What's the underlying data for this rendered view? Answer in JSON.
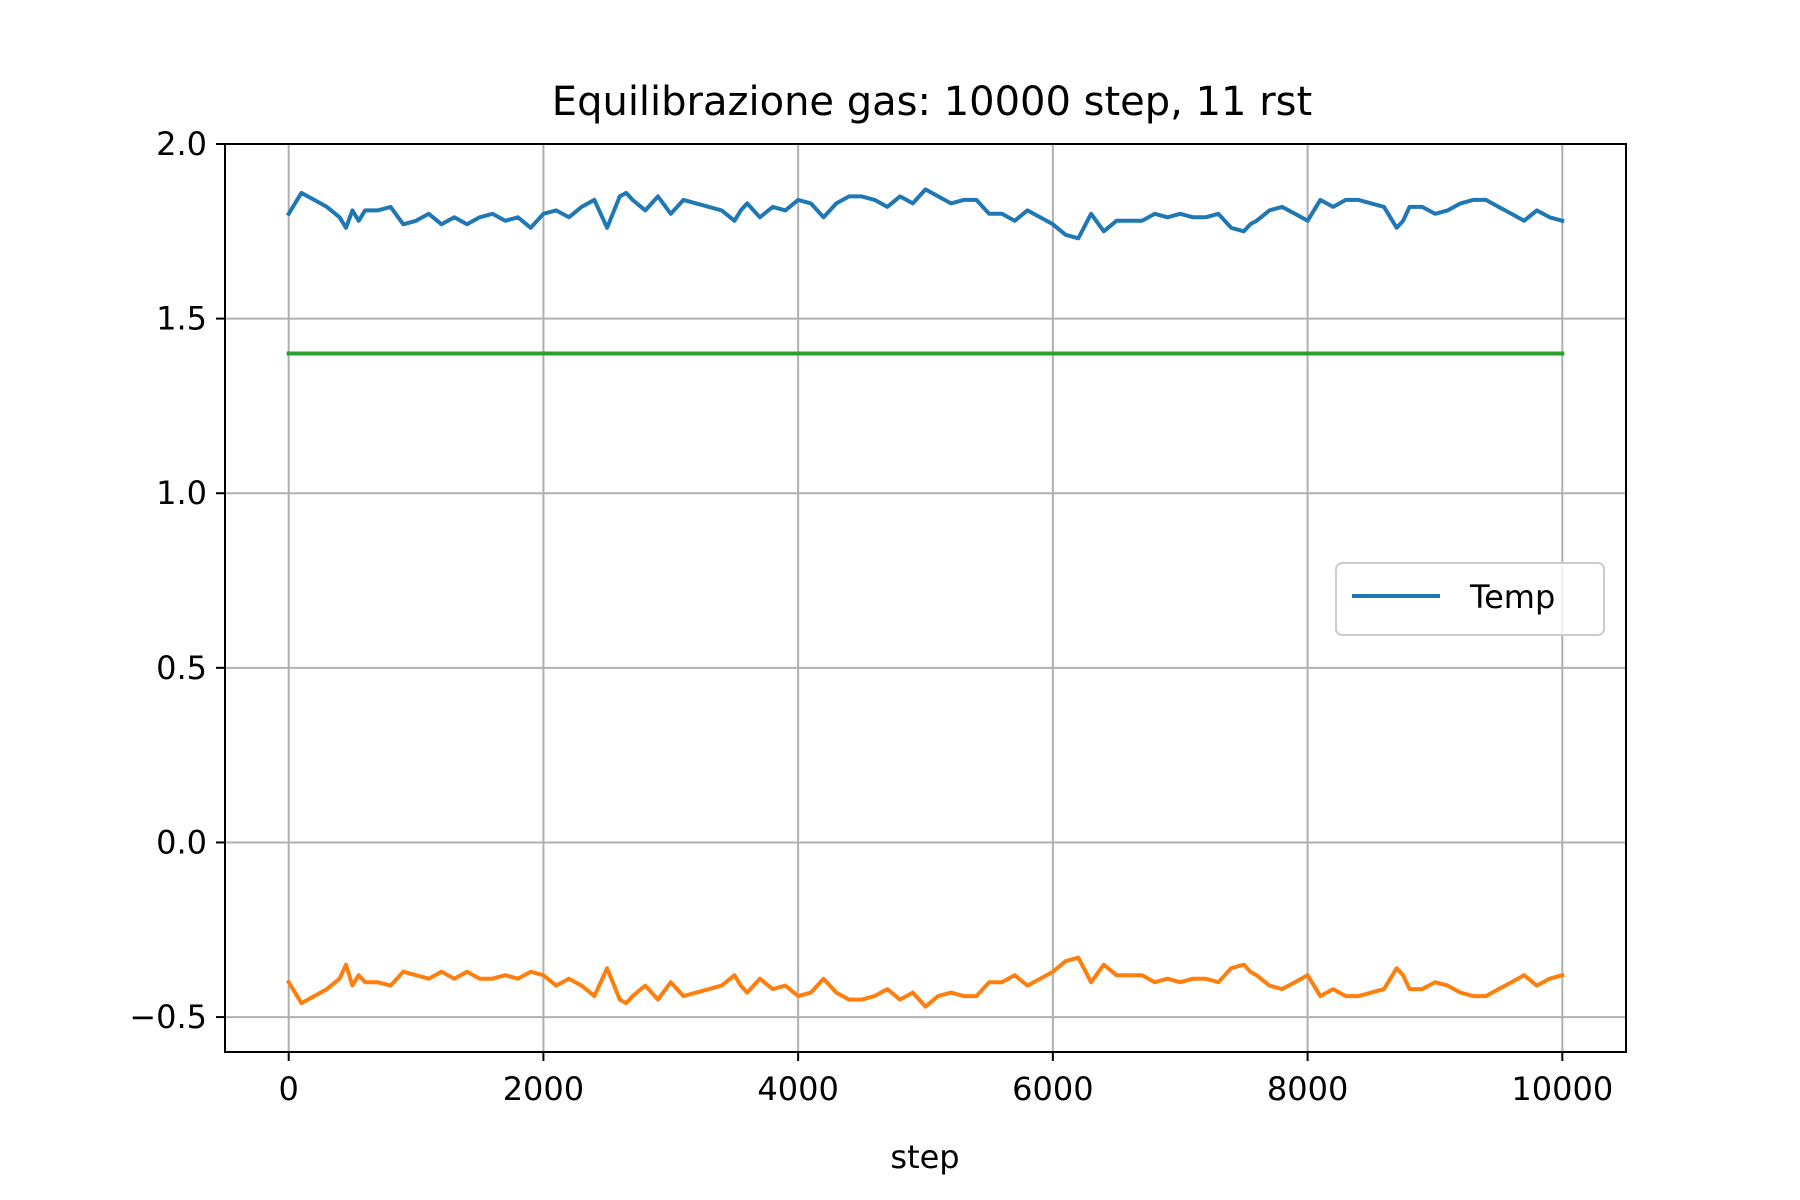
{
  "chart_data": {
    "type": "line",
    "title": "Equilibrazione gas: 10000 step, 11 rst",
    "xlabel": "step",
    "ylabel": "",
    "xlim": [
      -500,
      10500
    ],
    "ylim": [
      -0.6,
      2.0
    ],
    "xticks": [
      0,
      2000,
      4000,
      6000,
      8000,
      10000
    ],
    "xtick_labels": [
      "0",
      "2000",
      "4000",
      "6000",
      "8000",
      "10000"
    ],
    "yticks": [
      -0.5,
      0.0,
      0.5,
      1.0,
      1.5,
      2.0
    ],
    "ytick_labels": [
      "−0.5",
      "0.0",
      "0.5",
      "1.0",
      "1.5",
      "2.0"
    ],
    "grid": true,
    "legend": {
      "position": "center-right",
      "entries": [
        "Temp"
      ]
    },
    "series": [
      {
        "name": "Temp",
        "color": "#1f77b4",
        "x": [
          0,
          100,
          200,
          300,
          400,
          450,
          500,
          550,
          600,
          700,
          800,
          900,
          1000,
          1100,
          1200,
          1300,
          1400,
          1500,
          1600,
          1700,
          1800,
          1900,
          2000,
          2100,
          2200,
          2300,
          2400,
          2500,
          2600,
          2650,
          2700,
          2800,
          2900,
          3000,
          3100,
          3200,
          3300,
          3400,
          3500,
          3550,
          3600,
          3700,
          3800,
          3900,
          4000,
          4100,
          4200,
          4300,
          4400,
          4500,
          4600,
          4700,
          4800,
          4900,
          5000,
          5100,
          5200,
          5300,
          5400,
          5500,
          5600,
          5700,
          5800,
          5900,
          6000,
          6100,
          6200,
          6300,
          6400,
          6500,
          6600,
          6700,
          6800,
          6900,
          7000,
          7100,
          7200,
          7300,
          7400,
          7500,
          7550,
          7600,
          7700,
          7800,
          7900,
          8000,
          8100,
          8200,
          8300,
          8400,
          8500,
          8600,
          8700,
          8750,
          8800,
          8900,
          9000,
          9100,
          9200,
          9300,
          9400,
          9500,
          9600,
          9700,
          9800,
          9900,
          10000
        ],
        "values": [
          1.8,
          1.86,
          1.84,
          1.82,
          1.79,
          1.76,
          1.81,
          1.78,
          1.81,
          1.81,
          1.82,
          1.77,
          1.78,
          1.8,
          1.77,
          1.79,
          1.77,
          1.79,
          1.8,
          1.78,
          1.79,
          1.76,
          1.8,
          1.81,
          1.79,
          1.82,
          1.84,
          1.76,
          1.85,
          1.86,
          1.84,
          1.81,
          1.85,
          1.8,
          1.84,
          1.83,
          1.82,
          1.81,
          1.78,
          1.81,
          1.83,
          1.79,
          1.82,
          1.81,
          1.84,
          1.83,
          1.79,
          1.83,
          1.85,
          1.85,
          1.84,
          1.82,
          1.85,
          1.83,
          1.87,
          1.85,
          1.83,
          1.84,
          1.84,
          1.8,
          1.8,
          1.78,
          1.81,
          1.79,
          1.77,
          1.74,
          1.73,
          1.8,
          1.75,
          1.78,
          1.78,
          1.78,
          1.8,
          1.79,
          1.8,
          1.79,
          1.79,
          1.8,
          1.76,
          1.75,
          1.77,
          1.78,
          1.81,
          1.82,
          1.8,
          1.78,
          1.84,
          1.82,
          1.84,
          1.84,
          1.83,
          1.82,
          1.76,
          1.78,
          1.82,
          1.82,
          1.8,
          1.81,
          1.83,
          1.84,
          1.84,
          1.82,
          1.8,
          1.78,
          1.81,
          1.79,
          1.78
        ]
      },
      {
        "name": "",
        "color": "#ff7f0e",
        "x": [
          0,
          100,
          200,
          300,
          400,
          450,
          500,
          550,
          600,
          700,
          800,
          900,
          1000,
          1100,
          1200,
          1300,
          1400,
          1500,
          1600,
          1700,
          1800,
          1900,
          2000,
          2100,
          2200,
          2300,
          2400,
          2500,
          2600,
          2650,
          2700,
          2800,
          2900,
          3000,
          3100,
          3200,
          3300,
          3400,
          3500,
          3550,
          3600,
          3700,
          3800,
          3900,
          4000,
          4100,
          4200,
          4300,
          4400,
          4500,
          4600,
          4700,
          4800,
          4900,
          5000,
          5100,
          5200,
          5300,
          5400,
          5500,
          5600,
          5700,
          5800,
          5900,
          6000,
          6100,
          6200,
          6300,
          6400,
          6500,
          6600,
          6700,
          6800,
          6900,
          7000,
          7100,
          7200,
          7300,
          7400,
          7500,
          7550,
          7600,
          7700,
          7800,
          7900,
          8000,
          8100,
          8200,
          8300,
          8400,
          8500,
          8600,
          8700,
          8750,
          8800,
          8900,
          9000,
          9100,
          9200,
          9300,
          9400,
          9500,
          9600,
          9700,
          9800,
          9900,
          10000
        ],
        "values": [
          -0.4,
          -0.46,
          -0.44,
          -0.42,
          -0.39,
          -0.35,
          -0.41,
          -0.38,
          -0.4,
          -0.4,
          -0.41,
          -0.37,
          -0.38,
          -0.39,
          -0.37,
          -0.39,
          -0.37,
          -0.39,
          -0.39,
          -0.38,
          -0.39,
          -0.37,
          -0.38,
          -0.41,
          -0.39,
          -0.41,
          -0.44,
          -0.36,
          -0.45,
          -0.46,
          -0.44,
          -0.41,
          -0.45,
          -0.4,
          -0.44,
          -0.43,
          -0.42,
          -0.41,
          -0.38,
          -0.41,
          -0.43,
          -0.39,
          -0.42,
          -0.41,
          -0.44,
          -0.43,
          -0.39,
          -0.43,
          -0.45,
          -0.45,
          -0.44,
          -0.42,
          -0.45,
          -0.43,
          -0.47,
          -0.44,
          -0.43,
          -0.44,
          -0.44,
          -0.4,
          -0.4,
          -0.38,
          -0.41,
          -0.39,
          -0.37,
          -0.34,
          -0.33,
          -0.4,
          -0.35,
          -0.38,
          -0.38,
          -0.38,
          -0.4,
          -0.39,
          -0.4,
          -0.39,
          -0.39,
          -0.4,
          -0.36,
          -0.35,
          -0.37,
          -0.38,
          -0.41,
          -0.42,
          -0.4,
          -0.38,
          -0.44,
          -0.42,
          -0.44,
          -0.44,
          -0.43,
          -0.42,
          -0.36,
          -0.38,
          -0.42,
          -0.42,
          -0.4,
          -0.41,
          -0.43,
          -0.44,
          -0.44,
          -0.42,
          -0.4,
          -0.38,
          -0.41,
          -0.39,
          -0.38
        ]
      },
      {
        "name": "",
        "color": "#2ca02c",
        "x": [
          0,
          10000
        ],
        "values": [
          1.4,
          1.4
        ]
      }
    ]
  }
}
